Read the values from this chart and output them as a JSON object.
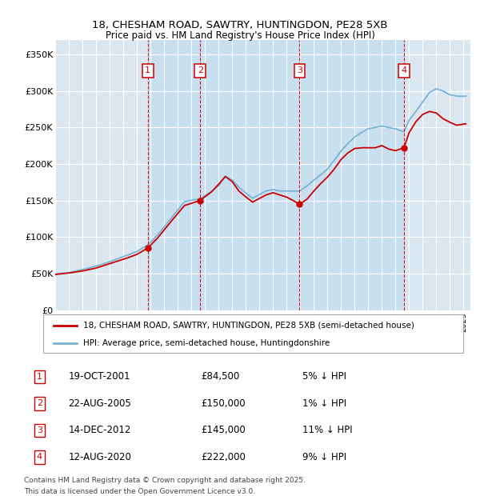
{
  "title1": "18, CHESHAM ROAD, SAWTRY, HUNTINGDON, PE28 5XB",
  "title2": "Price paid vs. HM Land Registry's House Price Index (HPI)",
  "background_color": "#dae6f0",
  "highlight_color": "#c8dff0",
  "ylim": [
    0,
    370000
  ],
  "yticks": [
    0,
    50000,
    100000,
    150000,
    200000,
    250000,
    300000,
    350000
  ],
  "ytick_labels": [
    "£0",
    "£50K",
    "£100K",
    "£150K",
    "£200K",
    "£250K",
    "£300K",
    "£350K"
  ],
  "legend_label_red": "18, CHESHAM ROAD, SAWTRY, HUNTINGDON, PE28 5XB (semi-detached house)",
  "legend_label_blue": "HPI: Average price, semi-detached house, Huntingdonshire",
  "transactions": [
    {
      "num": 1,
      "date": "19-OCT-2001",
      "price": 84500,
      "pct": "5%",
      "dir": "↓",
      "x": 2001.8
    },
    {
      "num": 2,
      "date": "22-AUG-2005",
      "price": 150000,
      "pct": "1%",
      "dir": "↓",
      "x": 2005.65
    },
    {
      "num": 3,
      "date": "14-DEC-2012",
      "price": 145000,
      "pct": "11%",
      "dir": "↓",
      "x": 2012.95
    },
    {
      "num": 4,
      "date": "12-AUG-2020",
      "price": 222000,
      "pct": "9%",
      "dir": "↓",
      "x": 2020.62
    }
  ],
  "footer1": "Contains HM Land Registry data © Crown copyright and database right 2025.",
  "footer2": "This data is licensed under the Open Government Licence v3.0.",
  "red_color": "#cc0000",
  "blue_color": "#7ab3d4",
  "grid_color": "#ffffff",
  "hpi_x": [
    1995.0,
    1996.0,
    1997.0,
    1998.0,
    1999.0,
    2000.0,
    2001.0,
    2001.8,
    2002.5,
    2003.5,
    2004.5,
    2005.65,
    2006.5,
    2007.0,
    2007.5,
    2008.0,
    2008.5,
    2009.0,
    2009.5,
    2010.0,
    2010.5,
    2011.0,
    2011.5,
    2012.0,
    2012.5,
    2012.95,
    2013.5,
    2014.0,
    2014.5,
    2015.0,
    2015.5,
    2016.0,
    2016.5,
    2017.0,
    2017.5,
    2018.0,
    2018.5,
    2019.0,
    2019.5,
    2020.0,
    2020.62,
    2021.0,
    2021.5,
    2022.0,
    2022.5,
    2023.0,
    2023.5,
    2024.0,
    2024.5,
    2025.1
  ],
  "hpi_y": [
    49000,
    51000,
    55000,
    60000,
    66000,
    73000,
    80000,
    89000,
    102000,
    125000,
    148000,
    152000,
    162000,
    170000,
    183000,
    178000,
    168000,
    160000,
    153000,
    158000,
    163000,
    165000,
    163000,
    163000,
    163000,
    163000,
    170000,
    178000,
    185000,
    193000,
    205000,
    218000,
    228000,
    237000,
    243000,
    248000,
    250000,
    252000,
    250000,
    248000,
    244000,
    260000,
    272000,
    285000,
    298000,
    303000,
    300000,
    295000,
    293000,
    293000
  ],
  "pp_x": [
    1995.0,
    1996.0,
    1997.0,
    1998.0,
    1999.0,
    2000.0,
    2001.0,
    2001.8,
    2002.5,
    2003.5,
    2004.5,
    2005.65,
    2006.5,
    2007.0,
    2007.5,
    2008.0,
    2008.5,
    2009.0,
    2009.5,
    2010.0,
    2010.5,
    2011.0,
    2011.5,
    2012.0,
    2012.5,
    2012.95,
    2013.5,
    2014.0,
    2014.5,
    2015.0,
    2015.5,
    2016.0,
    2016.5,
    2017.0,
    2017.5,
    2018.0,
    2018.5,
    2019.0,
    2019.5,
    2020.0,
    2020.62,
    2021.0,
    2021.5,
    2022.0,
    2022.5,
    2023.0,
    2023.5,
    2024.0,
    2024.5,
    2025.1
  ],
  "pp_y": [
    48000,
    50000,
    53000,
    57000,
    63000,
    69000,
    76000,
    84500,
    98000,
    121000,
    143000,
    150000,
    162000,
    172000,
    183000,
    176000,
    163000,
    155000,
    148000,
    153000,
    158000,
    161000,
    158000,
    155000,
    150000,
    145000,
    152000,
    163000,
    173000,
    182000,
    193000,
    206000,
    215000,
    221000,
    222000,
    222000,
    222000,
    225000,
    220000,
    218000,
    222000,
    243000,
    258000,
    268000,
    272000,
    270000,
    262000,
    257000,
    253000,
    255000
  ]
}
